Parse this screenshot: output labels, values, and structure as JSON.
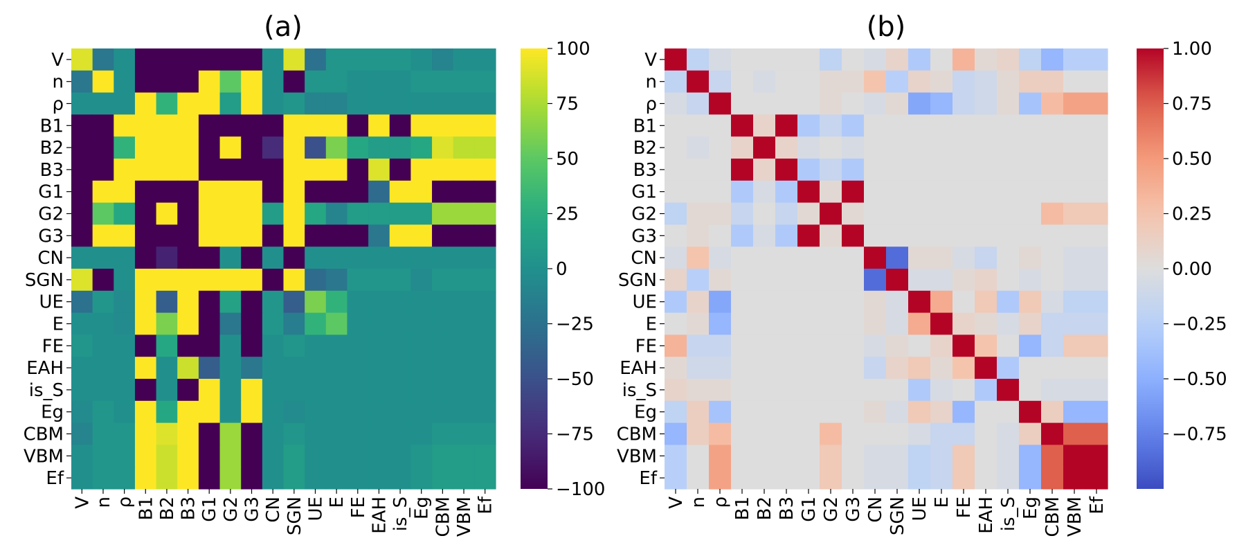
{
  "chart_data": [
    {
      "type": "heatmap",
      "title": "(a)",
      "labels": [
        "V",
        "n",
        "ρ",
        "B1",
        "B2",
        "B3",
        "G1",
        "G2",
        "G3",
        "CN",
        "SGN",
        "UE",
        "E",
        "FE",
        "EAH",
        "is_S",
        "Eg",
        "CBM",
        "VBM",
        "Ef"
      ],
      "colormap": "viridis",
      "vmin": -100,
      "vmax": 100,
      "colorbar_ticks": [
        "100",
        "75",
        "50",
        "25",
        "0",
        "−25",
        "−50",
        "−75",
        "−100"
      ],
      "matrix": [
        [
          90,
          -20,
          0,
          -100,
          -100,
          -100,
          -100,
          -100,
          -100,
          0,
          90,
          -25,
          5,
          5,
          5,
          5,
          0,
          -10,
          0,
          0
        ],
        [
          -20,
          100,
          0,
          -100,
          -100,
          -100,
          100,
          50,
          100,
          0,
          -100,
          5,
          5,
          0,
          0,
          0,
          5,
          5,
          5,
          5
        ],
        [
          0,
          0,
          0,
          100,
          30,
          100,
          100,
          10,
          100,
          0,
          5,
          -10,
          -10,
          0,
          0,
          0,
          0,
          0,
          0,
          0
        ],
        [
          -100,
          -100,
          100,
          100,
          100,
          100,
          -100,
          -100,
          -100,
          -100,
          100,
          100,
          100,
          -100,
          100,
          -100,
          100,
          100,
          100,
          100
        ],
        [
          -100,
          -100,
          30,
          100,
          100,
          100,
          -100,
          100,
          -100,
          -75,
          100,
          -50,
          60,
          20,
          10,
          10,
          20,
          90,
          80,
          80
        ],
        [
          -100,
          -100,
          100,
          100,
          100,
          100,
          -100,
          -100,
          -100,
          -100,
          100,
          100,
          100,
          -100,
          90,
          -100,
          100,
          100,
          100,
          100
        ],
        [
          -100,
          100,
          100,
          -100,
          -100,
          -100,
          100,
          100,
          100,
          -100,
          100,
          -100,
          -100,
          -100,
          -30,
          100,
          100,
          -100,
          -100,
          -100
        ],
        [
          -100,
          50,
          20,
          -100,
          100,
          -100,
          100,
          100,
          100,
          10,
          100,
          20,
          -10,
          10,
          10,
          10,
          10,
          70,
          70,
          70
        ],
        [
          -100,
          100,
          100,
          -100,
          -100,
          -100,
          100,
          100,
          100,
          -100,
          100,
          -100,
          -100,
          -100,
          -20,
          100,
          100,
          -100,
          -100,
          -100
        ],
        [
          0,
          0,
          0,
          -100,
          -80,
          -100,
          -100,
          0,
          -100,
          0,
          -100,
          0,
          0,
          0,
          0,
          0,
          0,
          0,
          0,
          0
        ],
        [
          90,
          -100,
          0,
          100,
          100,
          100,
          100,
          100,
          100,
          -100,
          100,
          -30,
          -20,
          5,
          5,
          5,
          -5,
          5,
          5,
          5
        ],
        [
          -25,
          5,
          -5,
          100,
          -40,
          100,
          -100,
          15,
          -100,
          5,
          -40,
          60,
          30,
          0,
          0,
          0,
          0,
          0,
          0,
          0
        ],
        [
          0,
          0,
          -5,
          100,
          60,
          100,
          -100,
          -20,
          -100,
          5,
          -15,
          30,
          50,
          0,
          0,
          0,
          0,
          0,
          0,
          0
        ],
        [
          5,
          0,
          0,
          -100,
          20,
          -100,
          -100,
          0,
          -100,
          0,
          5,
          0,
          0,
          0,
          0,
          0,
          0,
          0,
          0,
          0
        ],
        [
          0,
          0,
          0,
          100,
          0,
          85,
          -40,
          0,
          -20,
          0,
          0,
          0,
          0,
          0,
          0,
          0,
          0,
          0,
          0,
          0
        ],
        [
          0,
          0,
          0,
          -100,
          0,
          -100,
          100,
          0,
          100,
          0,
          0,
          0,
          0,
          0,
          0,
          0,
          0,
          0,
          0,
          0
        ],
        [
          -5,
          5,
          0,
          100,
          20,
          100,
          100,
          0,
          100,
          0,
          -5,
          0,
          0,
          0,
          0,
          0,
          0,
          0,
          0,
          0
        ],
        [
          -10,
          5,
          5,
          100,
          90,
          100,
          -100,
          70,
          -100,
          0,
          5,
          0,
          0,
          0,
          0,
          0,
          0,
          5,
          5,
          5
        ],
        [
          0,
          5,
          5,
          100,
          85,
          100,
          -100,
          70,
          -100,
          0,
          10,
          0,
          0,
          0,
          0,
          0,
          5,
          10,
          10,
          10
        ],
        [
          0,
          5,
          5,
          100,
          85,
          100,
          -100,
          70,
          -100,
          0,
          10,
          0,
          0,
          0,
          0,
          0,
          5,
          10,
          10,
          10
        ]
      ]
    },
    {
      "type": "heatmap",
      "title": "(b)",
      "labels": [
        "V",
        "n",
        "ρ",
        "B1",
        "B2",
        "B3",
        "G1",
        "G2",
        "G3",
        "CN",
        "SGN",
        "UE",
        "E",
        "FE",
        "EAH",
        "is_S",
        "Eg",
        "CBM",
        "VBM",
        "Ef"
      ],
      "colormap": "coolwarm",
      "vmin": -1,
      "vmax": 1,
      "colorbar_ticks": [
        "1.00",
        "0.75",
        "0.50",
        "0.25",
        "0.00",
        "−0.25",
        "−0.50",
        "−0.75"
      ],
      "matrix": [
        [
          1,
          -0.2,
          -0.05,
          0,
          0,
          0,
          0,
          -0.2,
          0,
          -0.05,
          0.1,
          -0.3,
          0,
          0.35,
          0.05,
          0.1,
          -0.2,
          -0.45,
          -0.25,
          -0.25
        ],
        [
          -0.2,
          1,
          -0.15,
          0,
          -0.05,
          0,
          0,
          0.05,
          0.05,
          0.25,
          -0.25,
          0.1,
          0.05,
          -0.15,
          -0.1,
          0.05,
          0.15,
          0.15,
          0,
          0
        ],
        [
          -0.05,
          -0.15,
          1,
          0,
          0,
          0,
          0,
          0.05,
          0,
          -0.05,
          0.05,
          -0.55,
          -0.45,
          -0.15,
          -0.1,
          0.05,
          -0.35,
          0.3,
          0.45,
          0.45
        ],
        [
          0,
          0,
          0,
          1,
          0.1,
          1,
          -0.3,
          -0.15,
          -0.3,
          0,
          0,
          0,
          0,
          0,
          0,
          0,
          0,
          0,
          0,
          0
        ],
        [
          0,
          -0.05,
          0,
          0.1,
          1,
          0.1,
          -0.05,
          0,
          -0.05,
          0,
          0,
          0,
          0,
          0,
          0,
          0,
          0,
          0,
          0,
          0
        ],
        [
          0,
          0,
          0,
          1,
          0.1,
          1,
          -0.3,
          -0.15,
          -0.3,
          0,
          0,
          0,
          0,
          0,
          0,
          0,
          0,
          0,
          0,
          0
        ],
        [
          0,
          0,
          0,
          -0.3,
          -0.05,
          -0.3,
          1,
          0.05,
          1,
          0,
          0,
          0,
          0,
          0,
          0,
          0,
          0,
          0,
          0,
          0
        ],
        [
          -0.2,
          0.05,
          0.05,
          -0.15,
          0,
          -0.15,
          0.05,
          1,
          0.05,
          0,
          0,
          0,
          0,
          0,
          0,
          0,
          0,
          0.3,
          0.2,
          0.2
        ],
        [
          0,
          0.05,
          0,
          -0.3,
          -0.05,
          -0.3,
          1,
          0.05,
          1,
          0,
          0,
          0,
          0,
          0,
          0,
          0,
          0,
          0,
          0,
          0
        ],
        [
          -0.05,
          0.25,
          -0.05,
          0,
          0,
          0,
          0,
          0,
          0,
          1,
          -0.85,
          0.05,
          0.05,
          -0.05,
          -0.15,
          0,
          0.05,
          0,
          -0.05,
          -0.05
        ],
        [
          0.1,
          -0.25,
          0.05,
          0,
          0,
          0,
          0,
          0,
          0,
          -0.85,
          1,
          -0.05,
          -0.05,
          0.05,
          0.1,
          0,
          -0.05,
          0,
          -0.05,
          -0.05
        ],
        [
          -0.3,
          0.1,
          -0.55,
          0,
          0,
          0,
          0,
          0,
          0,
          0.05,
          -0.05,
          1,
          0.4,
          0,
          0.2,
          -0.3,
          0.2,
          -0.05,
          -0.2,
          -0.2
        ],
        [
          0,
          0.05,
          -0.45,
          0,
          0,
          0,
          0,
          0,
          0,
          0.05,
          -0.05,
          0.4,
          1,
          0.1,
          0.05,
          -0.05,
          0.1,
          -0.15,
          -0.15,
          -0.15
        ],
        [
          0.35,
          -0.15,
          -0.15,
          0,
          0,
          0,
          0,
          0,
          0,
          -0.05,
          0.05,
          0,
          0.1,
          1,
          0.25,
          0,
          -0.45,
          -0.15,
          0.2,
          0.2
        ],
        [
          0.05,
          -0.1,
          -0.1,
          0,
          0,
          0,
          0,
          0,
          0,
          -0.15,
          0.1,
          0.2,
          0.05,
          0.25,
          1,
          -0.3,
          0,
          0,
          0,
          0
        ],
        [
          0.1,
          0.05,
          0.05,
          0,
          0,
          0,
          0,
          0,
          0,
          0,
          0,
          -0.3,
          -0.05,
          0,
          -0.3,
          1,
          0,
          -0.05,
          -0.05,
          -0.05
        ],
        [
          -0.2,
          0.15,
          -0.35,
          0,
          0,
          0,
          0,
          0,
          0,
          0.05,
          -0.05,
          0.2,
          0.1,
          -0.45,
          0,
          0,
          1,
          0.15,
          -0.45,
          -0.45
        ],
        [
          -0.45,
          0.15,
          0.3,
          0,
          0,
          0,
          0,
          0.3,
          0,
          0,
          0,
          -0.05,
          -0.15,
          -0.15,
          0,
          -0.05,
          0.15,
          1,
          0.75,
          0.75
        ],
        [
          -0.25,
          0,
          0.45,
          0,
          0,
          0,
          0,
          0.2,
          0,
          -0.05,
          -0.05,
          -0.2,
          -0.15,
          0.2,
          0,
          -0.05,
          -0.45,
          0.75,
          1,
          1
        ],
        [
          -0.25,
          0,
          0.45,
          0,
          0,
          0,
          0,
          0.2,
          0,
          -0.05,
          -0.05,
          -0.2,
          -0.15,
          0.2,
          0,
          -0.05,
          -0.45,
          0.75,
          1,
          1
        ]
      ]
    }
  ]
}
